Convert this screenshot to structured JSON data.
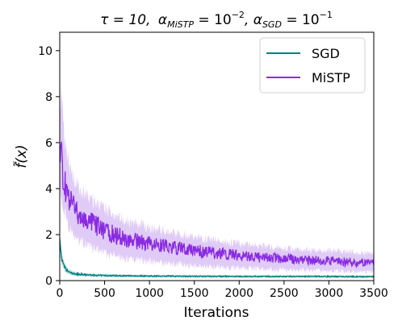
{
  "chart_data": {
    "type": "line",
    "title": "τ = 10, α_MiSTP = 10⁻², α_SGD = 10⁻¹",
    "title_parts": {
      "tau": "τ = 10,",
      "alpha": "α",
      "mistp_sub": "MiSTP",
      "mistp_val": " = 10",
      "mistp_exp": "−2",
      "comma": ", α",
      "sgd_sub": "SGD",
      "sgd_val": " = 10",
      "sgd_exp": "−1"
    },
    "xlabel": "Iterations",
    "ylabel": "f̃(x)",
    "xlim": [
      0,
      3500
    ],
    "ylim": [
      0,
      10.8
    ],
    "xticks": [
      0,
      500,
      1000,
      1500,
      2000,
      2500,
      3000,
      3500
    ],
    "yticks": [
      0,
      2,
      4,
      6,
      8,
      10
    ],
    "grid": false,
    "legend_position": "top-right",
    "series": [
      {
        "name": "SGD",
        "color": "#008080",
        "x": [
          0,
          10,
          25,
          50,
          75,
          100,
          150,
          200,
          300,
          400,
          500,
          750,
          1000,
          1500,
          2000,
          2500,
          3000,
          3500
        ],
        "mean": [
          1.9,
          1.3,
          0.9,
          0.6,
          0.45,
          0.38,
          0.3,
          0.28,
          0.25,
          0.23,
          0.22,
          0.21,
          0.2,
          0.19,
          0.18,
          0.18,
          0.18,
          0.17
        ],
        "upper": [
          2.1,
          1.6,
          1.1,
          0.8,
          0.6,
          0.5,
          0.4,
          0.36,
          0.32,
          0.3,
          0.28,
          0.26,
          0.25,
          0.24,
          0.23,
          0.23,
          0.23,
          0.22
        ],
        "lower": [
          1.5,
          1.0,
          0.7,
          0.45,
          0.33,
          0.28,
          0.22,
          0.2,
          0.18,
          0.17,
          0.16,
          0.15,
          0.14,
          0.13,
          0.13,
          0.13,
          0.12,
          0.12
        ]
      },
      {
        "name": "MiSTP",
        "color": "#8a2be2",
        "band_color": "#d9c2f5",
        "x": [
          0,
          25,
          50,
          100,
          150,
          200,
          300,
          400,
          500,
          600,
          750,
          1000,
          1250,
          1500,
          1750,
          2000,
          2250,
          2500,
          2750,
          3000,
          3250,
          3500
        ],
        "mean": [
          5.6,
          5.0,
          4.3,
          3.6,
          3.2,
          2.9,
          2.6,
          2.4,
          2.2,
          2.0,
          1.8,
          1.6,
          1.45,
          1.3,
          1.2,
          1.1,
          1.0,
          0.95,
          0.9,
          0.85,
          0.8,
          0.75
        ],
        "upper": [
          8.0,
          7.5,
          6.3,
          5.2,
          4.6,
          4.1,
          3.7,
          3.4,
          3.1,
          2.9,
          2.6,
          2.3,
          2.1,
          1.9,
          1.75,
          1.6,
          1.5,
          1.4,
          1.35,
          1.3,
          1.25,
          1.2
        ],
        "lower": [
          4.0,
          3.5,
          3.0,
          2.4,
          2.1,
          1.8,
          1.55,
          1.35,
          1.2,
          1.1,
          0.95,
          0.85,
          0.75,
          0.65,
          0.6,
          0.55,
          0.5,
          0.47,
          0.45,
          0.42,
          0.4,
          0.38
        ]
      }
    ]
  }
}
